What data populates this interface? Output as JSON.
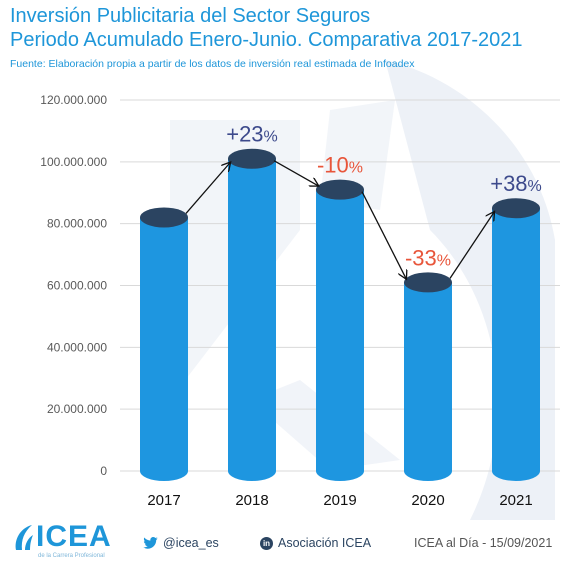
{
  "title_line1": "Inversión Publicitaria del Sector Seguros",
  "title_line2": "Periodo Acumulado Enero-Junio. Comparativa 2017-2021",
  "source": "Fuente: Elaboración propia a partir de los datos de inversión real estimada de Infoadex",
  "chart_data": {
    "type": "bar",
    "categories": [
      "2017",
      "2018",
      "2019",
      "2020",
      "2021"
    ],
    "values": [
      82000000,
      101000000,
      91000000,
      61000000,
      85000000
    ],
    "ylim": [
      0,
      120000000
    ],
    "yticks": [
      "0",
      "20.000.000",
      "40.000.000",
      "60.000.000",
      "80.000.000",
      "100.000.000",
      "120.000.000"
    ],
    "grid": true,
    "annotations": [
      {
        "text": "+23%",
        "color": "#3d4a8c"
      },
      {
        "text": "-10%",
        "color": "#e8553a"
      },
      {
        "text": "-33%",
        "color": "#e8553a"
      },
      {
        "text": "+38%",
        "color": "#3d4a8c"
      }
    ],
    "bar_color": "#1e96e0",
    "bar_top_color": "#2b4461"
  },
  "footer": {
    "logo_text": "ICEA",
    "logo_sub": "de la Carrera Profesional",
    "twitter_icon": "twitter-bird-icon",
    "twitter": "@icea_es",
    "linkedin_icon": "linkedin-icon",
    "linkedin_glyph": "in",
    "linkedin": "Asociación ICEA",
    "date": "ICEA al Día - 15/09/2021"
  }
}
